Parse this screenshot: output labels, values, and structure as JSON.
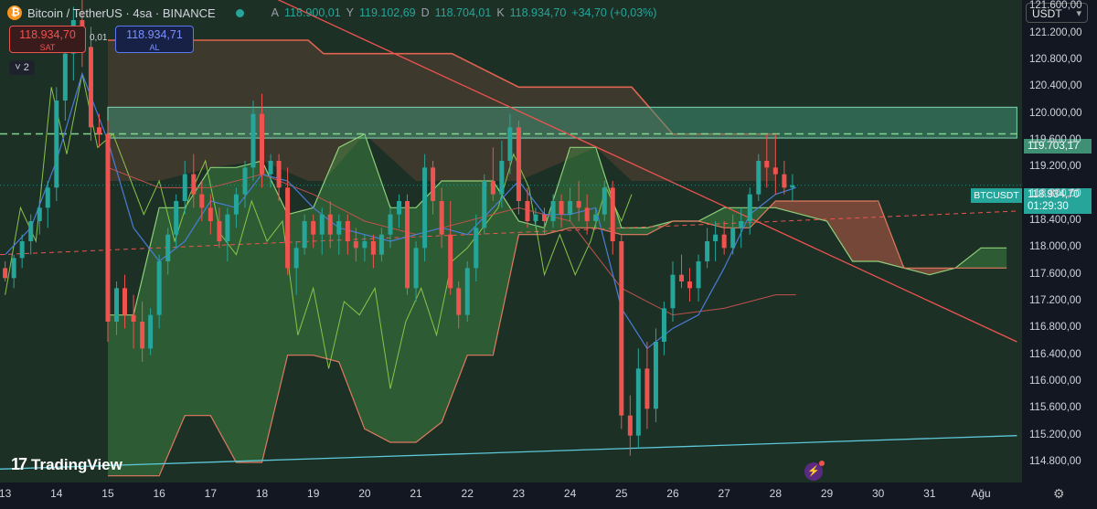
{
  "header": {
    "symbol": "Bitcoin / TetherUS · 4sa · BINANCE",
    "ohlc": [
      {
        "k": "A",
        "v": "118.900,01"
      },
      {
        "k": "Y",
        "v": "119.102,69"
      },
      {
        "k": "D",
        "v": "118.704,01"
      },
      {
        "k": "K",
        "v": "118.934,70"
      },
      {
        "k": "",
        "v": "+34,70 (+0,03%)"
      }
    ]
  },
  "trade": {
    "sell_price": "118.934,70",
    "sell_label": "SAT",
    "spread": "0,01",
    "buy_price": "118.934,71",
    "buy_label": "AL"
  },
  "indicators_count": "2",
  "currency": "USDT",
  "logo_text": "TradingView",
  "symbol_tag": "BTCUSDT",
  "last_price": "118.934,70",
  "countdown": "01:29:30",
  "level_price": "119.703,17",
  "colors": {
    "up": "#26a69a",
    "down": "#ef5350",
    "background": "#1c3026",
    "zone": "#3f8f74",
    "cloud_green": "#4caf50",
    "cloud_red": "#e0644f",
    "trendline_red": "#ef5350",
    "trendline_blue": "#5cc8d8"
  },
  "chart_data": {
    "type": "candlestick",
    "ylim": [
      114500,
      121700
    ],
    "y_ticks": [
      {
        "v": 121600,
        "label": "121.600,00"
      },
      {
        "v": 121200,
        "label": "121.200,00"
      },
      {
        "v": 120800,
        "label": "120.800,00"
      },
      {
        "v": 120400,
        "label": "120.400,00"
      },
      {
        "v": 120000,
        "label": "120.000,00"
      },
      {
        "v": 119600,
        "label": "119.600,00"
      },
      {
        "v": 119200,
        "label": "119.200,00"
      },
      {
        "v": 118800,
        "label": "118.800,00"
      },
      {
        "v": 118400,
        "label": "118.400,00"
      },
      {
        "v": 118000,
        "label": "118.000,00"
      },
      {
        "v": 117600,
        "label": "117.600,00"
      },
      {
        "v": 117200,
        "label": "117.200,00"
      },
      {
        "v": 116800,
        "label": "116.800,00"
      },
      {
        "v": 116400,
        "label": "116.400,00"
      },
      {
        "v": 116000,
        "label": "116.000,00"
      },
      {
        "v": 115600,
        "label": "115.600,00"
      },
      {
        "v": 115200,
        "label": "115.200,00"
      },
      {
        "v": 114800,
        "label": "114.800,00"
      }
    ],
    "x_ticks": [
      {
        "d": 13,
        "label": "13"
      },
      {
        "d": 14,
        "label": "14"
      },
      {
        "d": 15,
        "label": "15"
      },
      {
        "d": 16,
        "label": "16"
      },
      {
        "d": 17,
        "label": "17"
      },
      {
        "d": 18,
        "label": "18"
      },
      {
        "d": 19,
        "label": "19"
      },
      {
        "d": 20,
        "label": "20"
      },
      {
        "d": 21,
        "label": "21"
      },
      {
        "d": 22,
        "label": "22"
      },
      {
        "d": 23,
        "label": "23"
      },
      {
        "d": 24,
        "label": "24"
      },
      {
        "d": 25,
        "label": "25"
      },
      {
        "d": 26,
        "label": "26"
      },
      {
        "d": 27,
        "label": "27"
      },
      {
        "d": 28,
        "label": "28"
      },
      {
        "d": 29,
        "label": "29"
      },
      {
        "d": 30,
        "label": "30"
      },
      {
        "d": 31,
        "label": "31"
      },
      {
        "d": 32,
        "label": "Ağu"
      }
    ],
    "xlim": [
      12.9,
      32.8
    ],
    "candles": [
      [
        13.0,
        117700,
        117800,
        117500,
        117550
      ],
      [
        13.17,
        117550,
        117900,
        117400,
        117850
      ],
      [
        13.33,
        117850,
        118200,
        117700,
        118100
      ],
      [
        13.5,
        118100,
        118500,
        117900,
        118400
      ],
      [
        13.67,
        118400,
        118700,
        118200,
        118600
      ],
      [
        13.83,
        118600,
        119000,
        118300,
        118900
      ],
      [
        14.0,
        118900,
        120400,
        118700,
        120200
      ],
      [
        14.17,
        120200,
        121100,
        119900,
        120900
      ],
      [
        14.33,
        120900,
        121600,
        120500,
        121400
      ],
      [
        14.5,
        121400,
        121700,
        120700,
        121000
      ],
      [
        14.67,
        121000,
        121300,
        119600,
        119800
      ],
      [
        14.83,
        119800,
        120000,
        119500,
        119700
      ],
      [
        15.0,
        119700,
        119900,
        116600,
        116900
      ],
      [
        15.17,
        116900,
        117500,
        116700,
        117400
      ],
      [
        15.33,
        117400,
        117600,
        116800,
        117000
      ],
      [
        15.5,
        117000,
        117300,
        116500,
        116900
      ],
      [
        15.67,
        116900,
        117200,
        116300,
        116500
      ],
      [
        15.83,
        116500,
        117100,
        116400,
        117000
      ],
      [
        16.0,
        117000,
        117900,
        116800,
        117800
      ],
      [
        16.17,
        117800,
        118300,
        117600,
        118200
      ],
      [
        16.33,
        118200,
        118800,
        118000,
        118700
      ],
      [
        16.5,
        118700,
        119300,
        118500,
        119100
      ],
      [
        16.67,
        119100,
        119400,
        118600,
        118800
      ],
      [
        16.83,
        118800,
        119000,
        118400,
        118600
      ],
      [
        17.0,
        118600,
        118800,
        118200,
        118400
      ],
      [
        17.17,
        118400,
        118600,
        118000,
        118100
      ],
      [
        17.33,
        118100,
        118600,
        117800,
        118500
      ],
      [
        17.5,
        118500,
        118900,
        118300,
        118800
      ],
      [
        17.67,
        118800,
        119300,
        118600,
        119200
      ],
      [
        17.83,
        119200,
        120200,
        119000,
        120000
      ],
      [
        18.0,
        120000,
        120300,
        118900,
        119100
      ],
      [
        18.17,
        119100,
        119400,
        118900,
        119300
      ],
      [
        18.33,
        119300,
        119400,
        118700,
        118900
      ],
      [
        18.5,
        118900,
        119200,
        117600,
        117700
      ],
      [
        18.67,
        117700,
        118100,
        117300,
        118000
      ],
      [
        18.83,
        118000,
        118500,
        117900,
        118400
      ],
      [
        19.0,
        118400,
        118500,
        118000,
        118200
      ],
      [
        19.17,
        118200,
        118600,
        117900,
        118500
      ],
      [
        19.33,
        118500,
        118700,
        118000,
        118200
      ],
      [
        19.5,
        118200,
        118500,
        117900,
        118400
      ],
      [
        19.67,
        118400,
        118500,
        117900,
        118100
      ],
      [
        19.83,
        118100,
        118300,
        117800,
        118000
      ],
      [
        20.0,
        118000,
        118200,
        117800,
        118100
      ],
      [
        20.17,
        118100,
        118200,
        117700,
        117900
      ],
      [
        20.33,
        117900,
        118300,
        117800,
        118200
      ],
      [
        20.5,
        118200,
        118600,
        118000,
        118500
      ],
      [
        20.67,
        118500,
        118800,
        118300,
        118700
      ],
      [
        20.83,
        118700,
        118800,
        117300,
        117400
      ],
      [
        21.0,
        117400,
        118100,
        117200,
        118000
      ],
      [
        21.17,
        118000,
        119400,
        117800,
        119200
      ],
      [
        21.33,
        119200,
        119300,
        118500,
        118700
      ],
      [
        21.5,
        118700,
        118900,
        118000,
        118200
      ],
      [
        21.67,
        118200,
        118700,
        117300,
        117400
      ],
      [
        21.83,
        117400,
        117500,
        116800,
        117000
      ],
      [
        22.0,
        117000,
        117800,
        116900,
        117700
      ],
      [
        22.17,
        117700,
        118500,
        117500,
        118300
      ],
      [
        22.33,
        118300,
        119100,
        118200,
        119000
      ],
      [
        22.5,
        119000,
        119500,
        118700,
        118800
      ],
      [
        22.67,
        118800,
        119600,
        118600,
        119300
      ],
      [
        22.83,
        119300,
        120000,
        119100,
        119800
      ],
      [
        23.0,
        119800,
        119900,
        118500,
        118700
      ],
      [
        23.17,
        118700,
        118900,
        118300,
        118400
      ],
      [
        23.33,
        118400,
        118600,
        118300,
        118500
      ],
      [
        23.5,
        118500,
        118600,
        118200,
        118400
      ],
      [
        23.67,
        118400,
        118800,
        118300,
        118700
      ],
      [
        23.83,
        118700,
        118800,
        118300,
        118500
      ],
      [
        24.0,
        118500,
        118900,
        118400,
        118700
      ],
      [
        24.17,
        118700,
        119000,
        118400,
        118600
      ],
      [
        24.33,
        118600,
        118800,
        118200,
        118400
      ],
      [
        24.5,
        118400,
        118600,
        118300,
        118500
      ],
      [
        24.67,
        118500,
        119000,
        118400,
        118900
      ],
      [
        24.83,
        118900,
        119000,
        117900,
        118100
      ],
      [
        25.0,
        118100,
        118200,
        115300,
        115500
      ],
      [
        25.17,
        115500,
        115800,
        114900,
        115200
      ],
      [
        25.33,
        115200,
        116500,
        115000,
        116200
      ],
      [
        25.5,
        116200,
        116600,
        115300,
        115600
      ],
      [
        25.67,
        115600,
        116800,
        115400,
        116600
      ],
      [
        25.83,
        116600,
        117200,
        116400,
        117100
      ],
      [
        26.0,
        117100,
        117800,
        116900,
        117600
      ],
      [
        26.17,
        117600,
        117900,
        117400,
        117500
      ],
      [
        26.33,
        117500,
        117700,
        117200,
        117400
      ],
      [
        26.5,
        117400,
        117900,
        117200,
        117800
      ],
      [
        26.67,
        117800,
        118300,
        117700,
        118100
      ],
      [
        26.83,
        118100,
        118400,
        117800,
        118200
      ],
      [
        27.0,
        118200,
        118400,
        117900,
        118000
      ],
      [
        27.17,
        118000,
        118500,
        117900,
        118300
      ],
      [
        27.33,
        118300,
        118600,
        118000,
        118400
      ],
      [
        27.5,
        118400,
        118900,
        118200,
        118800
      ],
      [
        27.67,
        118800,
        119400,
        118700,
        119300
      ],
      [
        27.83,
        119300,
        119700,
        118900,
        119200
      ],
      [
        28.0,
        119200,
        119700,
        118800,
        119100
      ],
      [
        28.17,
        119100,
        119300,
        118800,
        118900
      ],
      [
        28.33,
        118900,
        119100,
        118700,
        118935
      ]
    ],
    "last_close": 118935,
    "level_line": 119703,
    "zone": {
      "d0": 15.0,
      "d1": 32.7,
      "top": 120100,
      "bottom": 119640
    },
    "red_trendline": {
      "d0": 17.2,
      "v0": 122100,
      "d1": 32.7,
      "v1": 116600
    },
    "blue_trendline": {
      "d0": 12.9,
      "v0": 114700,
      "d1": 32.7,
      "v1": 115200
    },
    "dashed_trendline": {
      "d0": 12.9,
      "v0": 117900,
      "d1": 32.7,
      "v1": 118550
    },
    "cloud": {
      "x": [
        15.0,
        15.5,
        16.0,
        16.5,
        17.0,
        17.5,
        18.0,
        18.5,
        19.0,
        19.5,
        20.0,
        20.5,
        21.0,
        21.5,
        22.0,
        22.5,
        23.0,
        23.5,
        24.0,
        24.5,
        25.0,
        25.5,
        26.0,
        26.5,
        27.0,
        27.5,
        28.0,
        28.5,
        29.0,
        29.5,
        30.0,
        30.5,
        31.0,
        31.5,
        32.0,
        32.5
      ],
      "a": [
        117000,
        117000,
        118600,
        118600,
        119200,
        119200,
        119300,
        118500,
        118600,
        119500,
        119700,
        118600,
        118600,
        119000,
        119000,
        119000,
        118400,
        118300,
        119500,
        119500,
        118300,
        118300,
        118400,
        118400,
        118600,
        118600,
        118600,
        118500,
        118400,
        117800,
        117800,
        117700,
        117600,
        117700,
        118000,
        118000
      ],
      "b": [
        114600,
        114600,
        114600,
        115500,
        115500,
        114800,
        114800,
        116400,
        116400,
        116300,
        115300,
        115100,
        115100,
        115400,
        116400,
        116400,
        118200,
        118200,
        118300,
        118300,
        118200,
        118200,
        118400,
        118400,
        118300,
        118300,
        118700,
        118700,
        118700,
        118700,
        118700,
        117700,
        117700,
        117700,
        117700,
        117700
      ]
    },
    "top_band": {
      "x": [
        15.0,
        16.0,
        17.0,
        18.0,
        18.9,
        19.2,
        20.0,
        21.0,
        21.7,
        23.0,
        24.5,
        25.2,
        26.0,
        27.0,
        28.0
      ],
      "v": [
        121100,
        121100,
        121100,
        121100,
        121100,
        120900,
        120900,
        120900,
        120900,
        120400,
        120400,
        120400,
        119700,
        119700,
        119700
      ]
    },
    "tenkan": [
      [
        13.0,
        117900
      ],
      [
        13.5,
        118300
      ],
      [
        14.0,
        119300
      ],
      [
        14.5,
        120600
      ],
      [
        15.0,
        119600
      ],
      [
        15.5,
        118300
      ],
      [
        16.0,
        117800
      ],
      [
        16.5,
        118100
      ],
      [
        17.0,
        118700
      ],
      [
        17.5,
        118600
      ],
      [
        18.0,
        119100
      ],
      [
        18.5,
        119000
      ],
      [
        19.0,
        118600
      ],
      [
        19.5,
        118300
      ],
      [
        20.0,
        118200
      ],
      [
        20.5,
        118100
      ],
      [
        21.0,
        118200
      ],
      [
        21.5,
        118300
      ],
      [
        22.0,
        118200
      ],
      [
        22.5,
        118600
      ],
      [
        23.0,
        119000
      ],
      [
        23.5,
        118500
      ],
      [
        24.0,
        118500
      ],
      [
        24.5,
        118600
      ],
      [
        25.0,
        117100
      ],
      [
        25.5,
        116500
      ],
      [
        26.0,
        116800
      ],
      [
        26.5,
        117000
      ],
      [
        27.0,
        117700
      ],
      [
        27.5,
        118500
      ],
      [
        28.0,
        118800
      ],
      [
        28.4,
        118900
      ]
    ],
    "kijun": [
      [
        15.0,
        119200
      ],
      [
        16.0,
        118900
      ],
      [
        17.0,
        118900
      ],
      [
        18.0,
        119100
      ],
      [
        19.0,
        118800
      ],
      [
        20.0,
        118400
      ],
      [
        21.0,
        118200
      ],
      [
        22.0,
        118400
      ],
      [
        23.0,
        118600
      ],
      [
        24.0,
        118400
      ],
      [
        25.0,
        117400
      ],
      [
        26.0,
        117000
      ],
      [
        27.0,
        117100
      ],
      [
        27.5,
        117200
      ],
      [
        28.0,
        117300
      ],
      [
        28.4,
        117300
      ]
    ],
    "chikou": [
      [
        13.0,
        117300
      ],
      [
        13.3,
        118600
      ],
      [
        13.6,
        118100
      ],
      [
        13.9,
        120400
      ],
      [
        14.2,
        119400
      ],
      [
        14.5,
        120600
      ],
      [
        14.8,
        119500
      ],
      [
        15.1,
        119700
      ],
      [
        15.4,
        119100
      ],
      [
        15.7,
        118500
      ],
      [
        16.0,
        119000
      ],
      [
        16.3,
        118100
      ],
      [
        16.6,
        118800
      ],
      [
        16.9,
        119300
      ],
      [
        17.2,
        118200
      ],
      [
        17.5,
        117900
      ],
      [
        17.8,
        118700
      ],
      [
        18.1,
        118100
      ],
      [
        18.4,
        118400
      ],
      [
        18.7,
        116700
      ],
      [
        19.0,
        117400
      ],
      [
        19.3,
        116200
      ],
      [
        19.6,
        117200
      ],
      [
        19.9,
        117000
      ],
      [
        20.2,
        117400
      ],
      [
        20.5,
        115900
      ],
      [
        20.8,
        116900
      ],
      [
        21.1,
        117400
      ],
      [
        21.4,
        116700
      ],
      [
        21.7,
        117800
      ],
      [
        22.0,
        118000
      ],
      [
        22.3,
        118300
      ],
      [
        22.6,
        118600
      ],
      [
        22.9,
        119400
      ],
      [
        23.2,
        118900
      ],
      [
        23.5,
        117600
      ],
      [
        23.8,
        118200
      ],
      [
        24.1,
        117600
      ],
      [
        24.4,
        118100
      ],
      [
        24.7,
        118900
      ],
      [
        25.0,
        118400
      ],
      [
        25.2,
        118800
      ]
    ]
  }
}
